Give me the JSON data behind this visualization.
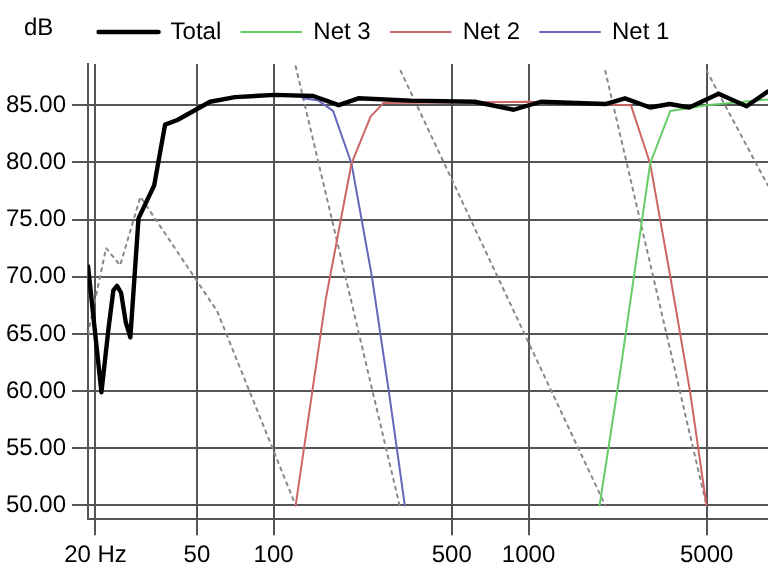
{
  "chart_data": {
    "type": "line",
    "ylabel": "dB",
    "log": "x",
    "grid": true,
    "legend": "top",
    "marker": "none",
    "xlim": [
      18.7,
      8700
    ],
    "ylim": [
      48.8,
      88.6
    ],
    "xticks": [
      {
        "value": 20,
        "label": "20 Hz"
      },
      50,
      100,
      500,
      1000,
      5000
    ],
    "yticks": [
      {
        "value": 50,
        "label": "50.00"
      },
      {
        "value": 55,
        "label": "55.00"
      },
      {
        "value": 60,
        "label": "60.00"
      },
      {
        "value": 65,
        "label": "65.00"
      },
      {
        "value": 70,
        "label": "70.00"
      },
      {
        "value": 75,
        "label": "75.00"
      },
      {
        "value": 80,
        "label": "80.00"
      },
      {
        "value": 85,
        "label": "85.00"
      }
    ],
    "series": [
      {
        "name": "Total",
        "color": "#000000",
        "x": [
          18.7,
          21.1,
          22.5,
          23.5,
          24.3,
          25.2,
          26.3,
          27.4,
          29.5,
          34,
          37.5,
          41.9,
          56.3,
          70.5,
          101,
          143,
          180,
          215,
          345,
          615,
          874,
          1118,
          2000,
          2390,
          3000,
          3580,
          4270,
          5570,
          7170,
          8680
        ],
        "values": [
          70.9,
          59.9,
          65.5,
          68.8,
          69.2,
          68.6,
          66,
          64.7,
          75.1,
          78,
          83.3,
          83.7,
          85.3,
          85.7,
          85.9,
          85.8,
          85,
          85.6,
          85.4,
          85.3,
          84.6,
          85.3,
          85.1,
          85.6,
          84.8,
          85.1,
          84.8,
          86,
          84.9,
          86.2
        ]
      },
      {
        "name": "Net 3",
        "color": "#66cc66",
        "x": [
          1900,
          2300,
          3000,
          3600,
          5000,
          8680
        ],
        "values": [
          50,
          62,
          79.9,
          84.5,
          85,
          85.5
        ]
      },
      {
        "name": "Net 2",
        "color": "#cc6666",
        "x": [
          122,
          160,
          202,
          240,
          270,
          1000,
          2520,
          3000,
          3600,
          4300,
          4990
        ],
        "values": [
          50,
          68,
          79.9,
          84,
          85.2,
          85.3,
          85,
          79.9,
          70,
          60,
          50
        ]
      },
      {
        "name": "Net 1",
        "color": "#6666bb",
        "x": [
          130,
          150,
          171,
          202,
          243,
          283,
          327
        ],
        "values": [
          85.6,
          85.4,
          84.5,
          79.9,
          70,
          60,
          50
        ]
      },
      {
        "color": "#888888",
        "line_style": "dotted",
        "x": [
          18.7,
          22,
          25,
          30,
          60,
          122
        ],
        "values": [
          65,
          72.5,
          71,
          77,
          67,
          50
        ]
      },
      {
        "color": "#888888",
        "line_style": "dotted",
        "x": [
          122,
          312
        ],
        "values": [
          88.4,
          50
        ]
      },
      {
        "color": "#888888",
        "line_style": "dotted",
        "x": [
          315,
          2000
        ],
        "values": [
          88,
          50
        ]
      },
      {
        "color": "#888888",
        "line_style": "dotted",
        "x": [
          2000,
          4990
        ],
        "values": [
          88,
          50
        ]
      },
      {
        "color": "#888888",
        "line_style": "dotted",
        "x": [
          5000,
          8680
        ],
        "values": [
          88,
          78
        ]
      }
    ]
  }
}
